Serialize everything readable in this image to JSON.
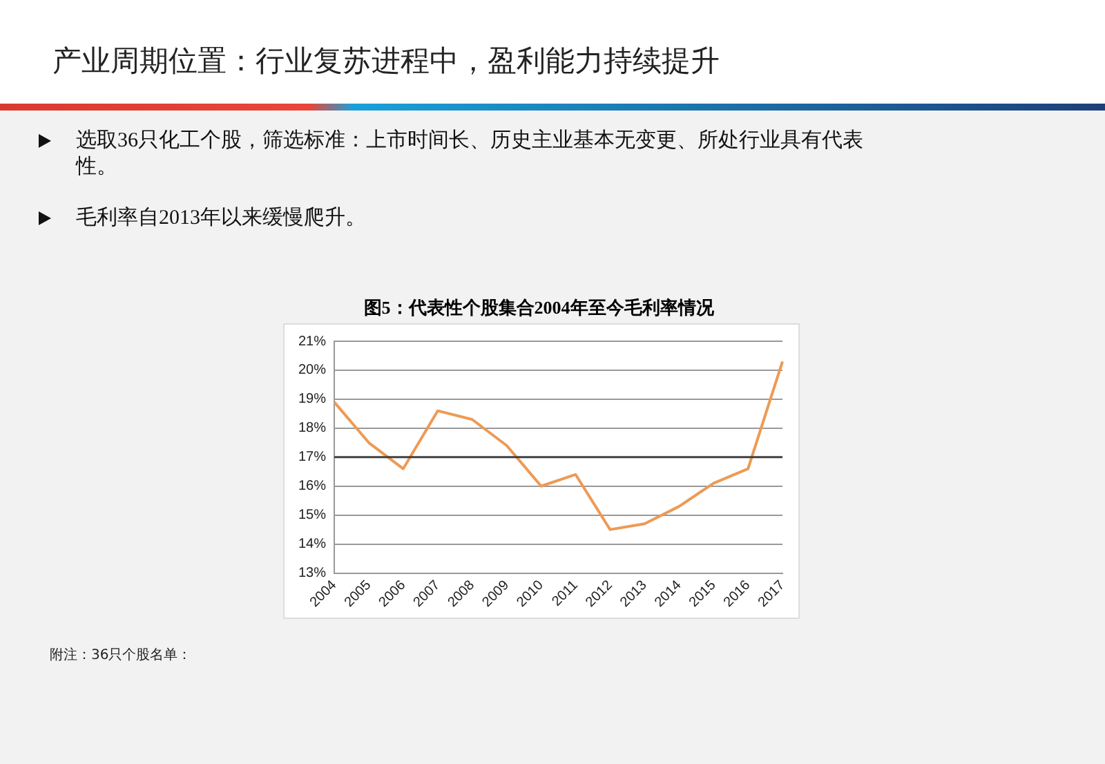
{
  "chart_data": {
    "type": "line",
    "title": "图5：代表性个股集合2004年至今毛利率情况",
    "annotations": [
      "产业周期位置：行业复苏进程中，盈利能力持续提升",
      "选取36只化工个股，筛选标准：上市时间长、历史主业基本无变更、所处行业具有代表性。",
      "毛利率自2013年以来缓慢爬升。",
      "附注：36只个股名单："
    ],
    "categories": [
      "2004",
      "2005",
      "2006",
      "2007",
      "2008",
      "2009",
      "2010",
      "2011",
      "2012",
      "2013",
      "2014",
      "2015",
      "2016",
      "2017"
    ],
    "series": [
      {
        "color": "#ed9a55",
        "values": [
          18.9,
          17.5,
          16.6,
          18.6,
          18.3,
          17.4,
          16.0,
          16.4,
          14.5,
          14.7,
          15.3,
          16.1,
          16.6,
          20.3
        ]
      }
    ],
    "ylim": [
      13,
      21
    ],
    "yticks": [
      {
        "value": 13,
        "label": "13%"
      },
      {
        "value": 14,
        "label": "14%"
      },
      {
        "value": 15,
        "label": "15%"
      },
      {
        "value": 16,
        "label": "16%"
      },
      {
        "value": 17,
        "label": "17%"
      },
      {
        "value": 18,
        "label": "18%"
      },
      {
        "value": 19,
        "label": "19%"
      },
      {
        "value": 20,
        "label": "20%"
      },
      {
        "value": 21,
        "label": "21%"
      }
    ],
    "ref_lines": [
      {
        "axis": "y",
        "value": 17,
        "color": "#404040"
      }
    ],
    "grid": "y",
    "legend": false,
    "marker": "none",
    "line_style": "solid"
  }
}
